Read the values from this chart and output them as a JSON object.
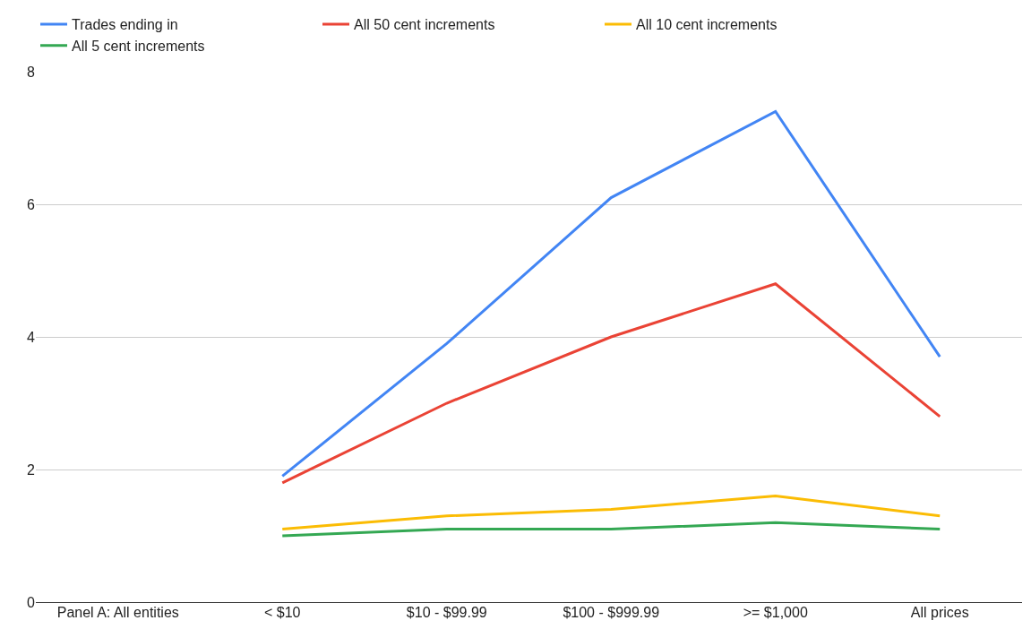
{
  "chart_data": {
    "type": "line",
    "categories": [
      "Panel A: All entities",
      "< $10",
      "$10 - $99.99",
      "$100 - $999.99",
      ">= $1,000",
      "All prices"
    ],
    "series": [
      {
        "name": "Trades ending in",
        "color": "#4285f4",
        "values": [
          null,
          1.9,
          3.9,
          6.1,
          7.4,
          3.7
        ]
      },
      {
        "name": "All 50 cent increments",
        "color": "#ea4335",
        "values": [
          null,
          1.8,
          3.0,
          4.0,
          4.8,
          2.8
        ]
      },
      {
        "name": "All 10 cent increments",
        "color": "#fbbc04",
        "values": [
          null,
          1.1,
          1.3,
          1.4,
          1.6,
          1.3
        ]
      },
      {
        "name": "All 5 cent increments",
        "color": "#34a853",
        "values": [
          null,
          1.0,
          1.1,
          1.1,
          1.2,
          1.1
        ]
      }
    ],
    "ylim": [
      0,
      8
    ],
    "yticks": [
      0,
      2,
      4,
      6,
      8
    ],
    "grid": "y",
    "legend": "top",
    "marker": "none",
    "line_style": "solid"
  }
}
